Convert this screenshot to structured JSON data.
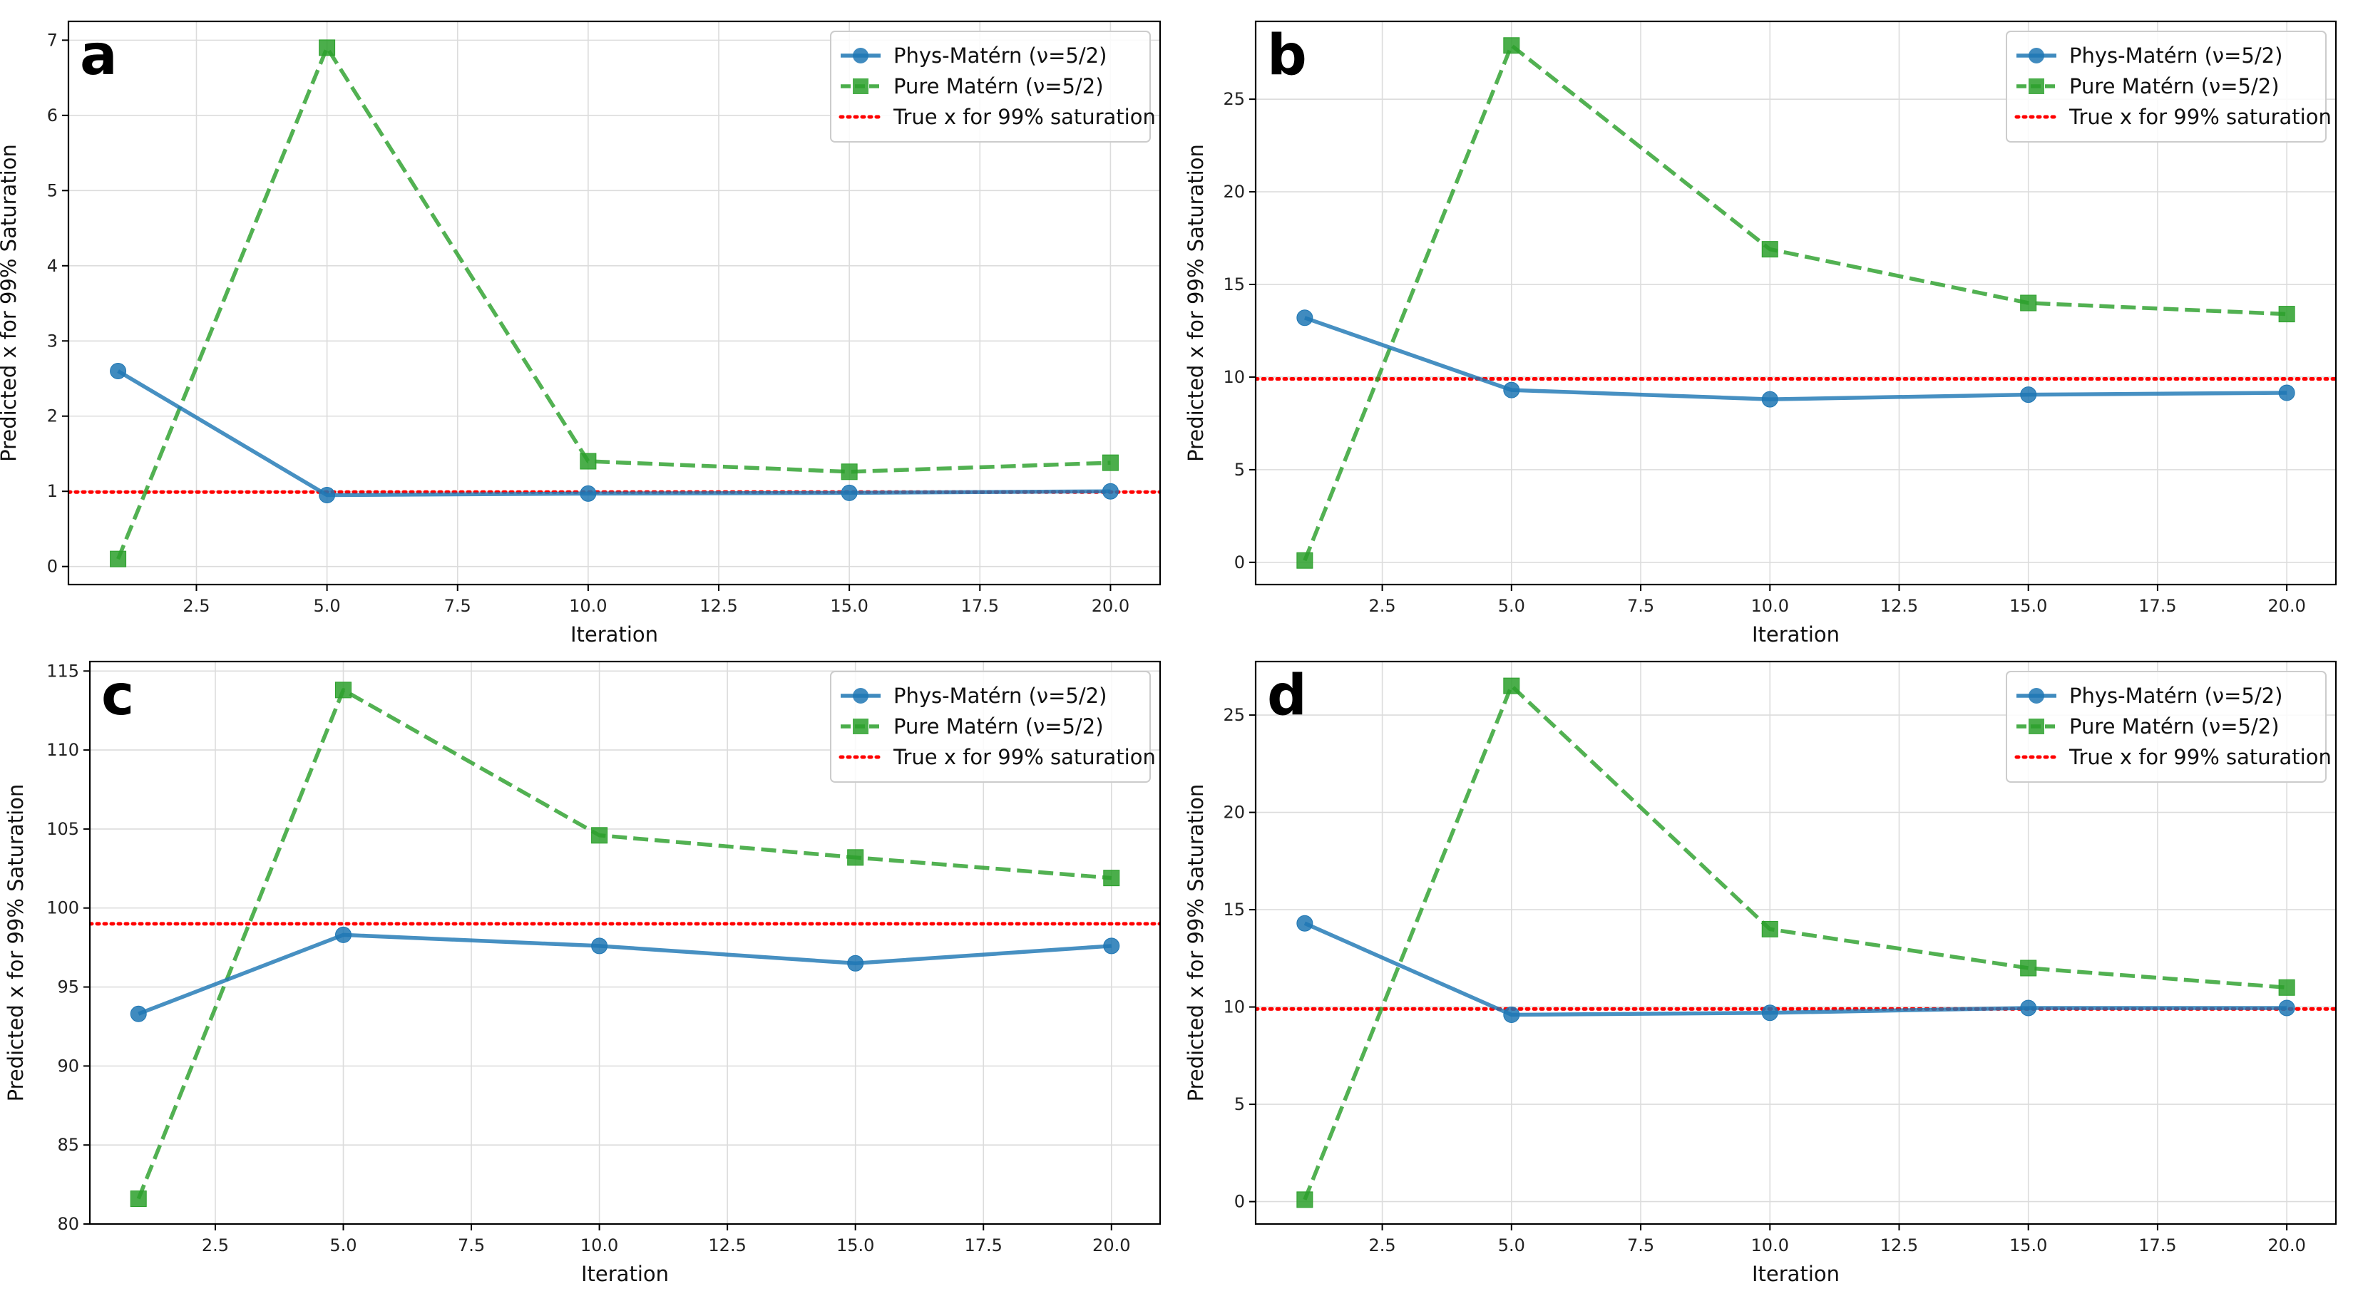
{
  "chart_data": [
    {
      "type": "line",
      "panel_label": "a",
      "title": "",
      "xlabel": "Iteration",
      "ylabel": "Predicted x for 99% Saturation",
      "xlim": [
        0.05,
        20.95
      ],
      "ylim": [
        -0.24,
        7.25
      ],
      "xticks": [
        2.5,
        5.0,
        7.5,
        10.0,
        12.5,
        15.0,
        17.5,
        20.0
      ],
      "xtick_labels": [
        "2.5",
        "5.0",
        "7.5",
        "10.0",
        "12.5",
        "15.0",
        "17.5",
        "20.0"
      ],
      "yticks": [
        0,
        1,
        2,
        3,
        4,
        5,
        6,
        7
      ],
      "ytick_labels": [
        "0",
        "1",
        "2",
        "3",
        "4",
        "5",
        "6",
        "7"
      ],
      "grid": true,
      "legend_position": "top-right",
      "x": [
        1,
        5,
        10,
        15,
        20
      ],
      "series": [
        {
          "name": "Phys-Matérn (ν=5/2)",
          "values": [
            2.6,
            0.95,
            0.97,
            0.98,
            1.0
          ],
          "color": "#1f77b4",
          "marker": "circle",
          "linestyle": "solid"
        },
        {
          "name": "Pure Matérn (ν=5/2)",
          "values": [
            0.1,
            6.9,
            1.4,
            1.26,
            1.38
          ],
          "color": "#2ca02c",
          "marker": "square",
          "linestyle": "dashed"
        }
      ],
      "reference_line": {
        "name": "True x for 99% saturation",
        "value": 0.99,
        "color": "#ff0000",
        "linestyle": "dotted"
      }
    },
    {
      "type": "line",
      "panel_label": "b",
      "title": "",
      "xlabel": "Iteration",
      "ylabel": "Predicted x for 99% Saturation",
      "xlim": [
        0.05,
        20.95
      ],
      "ylim": [
        -1.2,
        29.2
      ],
      "xticks": [
        2.5,
        5.0,
        7.5,
        10.0,
        12.5,
        15.0,
        17.5,
        20.0
      ],
      "xtick_labels": [
        "2.5",
        "5.0",
        "7.5",
        "10.0",
        "12.5",
        "15.0",
        "17.5",
        "20.0"
      ],
      "yticks": [
        0,
        5,
        10,
        15,
        20,
        25
      ],
      "ytick_labels": [
        "0",
        "5",
        "10",
        "15",
        "20",
        "25"
      ],
      "grid": true,
      "legend_position": "top-right",
      "x": [
        1,
        5,
        10,
        15,
        20
      ],
      "series": [
        {
          "name": "Phys-Matérn (ν=5/2)",
          "values": [
            13.2,
            9.3,
            8.8,
            9.05,
            9.15
          ],
          "color": "#1f77b4",
          "marker": "circle",
          "linestyle": "solid"
        },
        {
          "name": "Pure Matérn (ν=5/2)",
          "values": [
            0.1,
            27.9,
            16.9,
            14.0,
            13.4
          ],
          "color": "#2ca02c",
          "marker": "square",
          "linestyle": "dashed"
        }
      ],
      "reference_line": {
        "name": "True x for 99% saturation",
        "value": 9.9,
        "color": "#ff0000",
        "linestyle": "dotted"
      }
    },
    {
      "type": "line",
      "panel_label": "c",
      "title": "",
      "xlabel": "Iteration",
      "ylabel": "Predicted x for 99% Saturation",
      "xlim": [
        0.05,
        20.95
      ],
      "ylim": [
        80.0,
        115.6
      ],
      "xticks": [
        2.5,
        5.0,
        7.5,
        10.0,
        12.5,
        15.0,
        17.5,
        20.0
      ],
      "xtick_labels": [
        "2.5",
        "5.0",
        "7.5",
        "10.0",
        "12.5",
        "15.0",
        "17.5",
        "20.0"
      ],
      "yticks": [
        80,
        85,
        90,
        95,
        100,
        105,
        110,
        115
      ],
      "ytick_labels": [
        "80",
        "85",
        "90",
        "95",
        "100",
        "105",
        "110",
        "115"
      ],
      "grid": true,
      "legend_position": "top-right",
      "x": [
        1,
        5,
        10,
        15,
        20
      ],
      "series": [
        {
          "name": "Phys-Matérn (ν=5/2)",
          "values": [
            93.3,
            98.3,
            97.6,
            96.5,
            97.6
          ],
          "color": "#1f77b4",
          "marker": "circle",
          "linestyle": "solid"
        },
        {
          "name": "Pure Matérn (ν=5/2)",
          "values": [
            81.6,
            113.8,
            104.6,
            103.2,
            101.9
          ],
          "color": "#2ca02c",
          "marker": "square",
          "linestyle": "dashed"
        }
      ],
      "reference_line": {
        "name": "True x for 99% saturation",
        "value": 99.0,
        "color": "#ff0000",
        "linestyle": "dotted"
      }
    },
    {
      "type": "line",
      "panel_label": "d",
      "title": "",
      "xlabel": "Iteration",
      "ylabel": "Predicted x for 99% Saturation",
      "xlim": [
        0.05,
        20.95
      ],
      "ylim": [
        -1.15,
        27.75
      ],
      "xticks": [
        2.5,
        5.0,
        7.5,
        10.0,
        12.5,
        15.0,
        17.5,
        20.0
      ],
      "xtick_labels": [
        "2.5",
        "5.0",
        "7.5",
        "10.0",
        "12.5",
        "15.0",
        "17.5",
        "20.0"
      ],
      "yticks": [
        0,
        5,
        10,
        15,
        20,
        25
      ],
      "ytick_labels": [
        "0",
        "5",
        "10",
        "15",
        "20",
        "25"
      ],
      "grid": true,
      "legend_position": "top-right",
      "x": [
        1,
        5,
        10,
        15,
        20
      ],
      "series": [
        {
          "name": "Phys-Matérn (ν=5/2)",
          "values": [
            14.3,
            9.6,
            9.7,
            9.95,
            9.95
          ],
          "color": "#1f77b4",
          "marker": "circle",
          "linestyle": "solid"
        },
        {
          "name": "Pure Matérn (ν=5/2)",
          "values": [
            0.1,
            26.5,
            14.0,
            12.0,
            11.0
          ],
          "color": "#2ca02c",
          "marker": "square",
          "linestyle": "dashed"
        }
      ],
      "reference_line": {
        "name": "True x for 99% saturation",
        "value": 9.9,
        "color": "#ff0000",
        "linestyle": "dotted"
      }
    }
  ]
}
